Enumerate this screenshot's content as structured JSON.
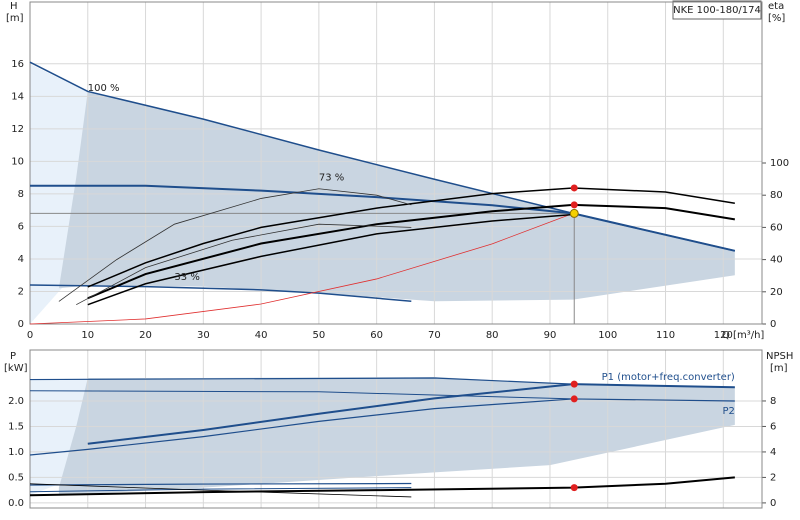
{
  "chart_data": [
    {
      "type": "line",
      "title": "NKE 100-180/174",
      "y_label": "H",
      "y_unit": "[m]",
      "y2_label": "eta",
      "y2_unit": "[%]",
      "x_label": "Q [m³/h]",
      "xlim": [
        0,
        126.7
      ],
      "xticks": [
        0,
        10,
        20,
        30,
        40,
        50,
        60,
        70,
        80,
        90,
        100,
        110,
        120
      ],
      "xtick_labels": true,
      "ylim": [
        0,
        19.8
      ],
      "yticks": [
        0,
        2,
        4,
        6,
        8,
        10,
        12,
        14,
        16
      ],
      "y2lim": [
        0,
        200
      ],
      "y2ticks": [
        0,
        20,
        40,
        60,
        80,
        100
      ],
      "grid": true,
      "envelope": {
        "color": "#c9d5e1",
        "x": [
          5,
          8,
          10,
          30,
          50,
          70,
          94,
          122
        ],
        "upper": [
          2.2,
          9,
          14.3,
          12.6,
          10.7,
          8.9,
          6.8,
          4.5
        ],
        "lower": [
          2.2,
          2.3,
          2.4,
          2.3,
          1.9,
          1.4,
          1.5,
          3.0
        ]
      },
      "series": [
        {
          "color": "#1f4e8c",
          "width": 1.5,
          "x": [
            0,
            10,
            30,
            50,
            70,
            94,
            122
          ],
          "values": [
            16.1,
            14.3,
            12.6,
            10.7,
            8.9,
            6.8,
            4.5
          ]
        },
        {
          "color": "#1f4e8c",
          "width": 2,
          "x": [
            0,
            20,
            40,
            60,
            80,
            94,
            122
          ],
          "values": [
            8.5,
            8.5,
            8.2,
            7.8,
            7.3,
            6.8,
            4.5
          ]
        },
        {
          "color": "#1f4e8c",
          "width": 1.5,
          "x": [
            0,
            20,
            40,
            50,
            66
          ],
          "values": [
            2.4,
            2.3,
            2.1,
            1.9,
            1.4
          ]
        },
        {
          "color": "#e03030",
          "width": 0.8,
          "x": [
            0,
            20,
            40,
            60,
            80,
            94
          ],
          "values": [
            0,
            0.31,
            1.23,
            2.77,
            4.93,
            6.8
          ]
        },
        {
          "color": "#000000",
          "width": 1.5,
          "axis": "y2",
          "x": [
            10,
            20,
            30,
            40,
            60,
            80,
            94,
            110,
            122
          ],
          "values": [
            23,
            38,
            50,
            60,
            72,
            81,
            84.5,
            82,
            75
          ]
        },
        {
          "color": "#000000",
          "width": 2,
          "axis": "y2",
          "x": [
            10,
            20,
            40,
            60,
            80,
            94,
            110,
            122
          ],
          "values": [
            16,
            31,
            50,
            62,
            70,
            74,
            72,
            65
          ]
        },
        {
          "color": "#000000",
          "width": 1.5,
          "axis": "y2",
          "x": [
            10,
            20,
            40,
            60,
            80,
            94
          ],
          "values": [
            12,
            25,
            42,
            56,
            64,
            68
          ]
        },
        {
          "color": "#333333",
          "width": 0.8,
          "axis": "y2",
          "x": [
            5,
            15,
            25,
            40,
            50,
            60,
            66
          ],
          "values": [
            14,
            40,
            62,
            78,
            84,
            80,
            74
          ]
        },
        {
          "color": "#333333",
          "width": 0.8,
          "axis": "y2",
          "x": [
            8,
            20,
            35,
            50,
            66
          ],
          "values": [
            12,
            35,
            52,
            62,
            60
          ]
        }
      ],
      "duty_point": {
        "x": 94.2,
        "y": 6.8,
        "color": "#f5d000"
      },
      "markers": [
        {
          "x": 94.2,
          "y": 84.5,
          "axis": "y2",
          "color": "#e02020"
        },
        {
          "x": 94.2,
          "y": 74,
          "axis": "y2",
          "color": "#e02020"
        }
      ],
      "annotations": [
        "100 %",
        "73 %",
        "33 %"
      ]
    },
    {
      "type": "line",
      "y_label": "P",
      "y_unit": "[kW]",
      "y2_label": "NPSH",
      "y2_unit": "[m]",
      "xlim": [
        0,
        126.7
      ],
      "xticks": [
        0,
        10,
        20,
        30,
        40,
        50,
        60,
        70,
        80,
        90,
        100,
        110,
        120
      ],
      "xtick_labels": false,
      "ylim": [
        -0.1,
        3.0
      ],
      "yticks": [
        {
          "value": 0,
          "label": "0.0"
        },
        0.5,
        {
          "value": 1,
          "label": "1.0"
        },
        1.5,
        {
          "value": 2,
          "label": "2.0"
        }
      ],
      "y2lim": [
        -0.4,
        12
      ],
      "y2ticks": [
        0,
        2,
        4,
        6,
        8
      ],
      "grid": true,
      "envelope": {
        "color": "#c9d5e1",
        "x": [
          5,
          8,
          10,
          30,
          50,
          70,
          90,
          122
        ],
        "upper": [
          0.3,
          1.5,
          2.45,
          2.45,
          2.46,
          2.47,
          2.35,
          2.28
        ],
        "lower": [
          0.15,
          0.16,
          0.18,
          0.3,
          0.45,
          0.6,
          0.74,
          1.53
        ]
      },
      "series": [
        {
          "name": "P1 (motor+freq.converter)",
          "color": "#1f4e8c",
          "width": 2,
          "x": [
            10,
            30,
            50,
            70,
            94,
            122
          ],
          "values": [
            1.16,
            1.43,
            1.75,
            2.05,
            2.33,
            2.27
          ]
        },
        {
          "name": "P2",
          "color": "#1f4e8c",
          "width": 1.2,
          "x": [
            0,
            10,
            30,
            50,
            70,
            94,
            122
          ],
          "values": [
            0.94,
            1.05,
            1.3,
            1.6,
            1.85,
            2.04,
            2.0
          ]
        },
        {
          "color": "#1f4e8c",
          "width": 1.2,
          "x": [
            0,
            70,
            94
          ],
          "values": [
            2.42,
            2.45,
            2.33
          ]
        },
        {
          "color": "#1f4e8c",
          "width": 1,
          "x": [
            0,
            50,
            94
          ],
          "values": [
            2.2,
            2.18,
            2.04
          ]
        },
        {
          "color": "#1f4e8c",
          "width": 1.2,
          "x": [
            0,
            30,
            66
          ],
          "values": [
            0.35,
            0.37,
            0.38
          ]
        },
        {
          "color": "#1f4e8c",
          "width": 1,
          "x": [
            0,
            30,
            66
          ],
          "values": [
            0.22,
            0.27,
            0.3
          ]
        },
        {
          "color": "#000000",
          "width": 2,
          "axis": "y2",
          "x": [
            0,
            30,
            60,
            94,
            110,
            122
          ],
          "values": [
            0.6,
            0.85,
            1.0,
            1.2,
            1.5,
            2.0
          ]
        },
        {
          "color": "#000000",
          "width": 0.8,
          "axis": "y2",
          "x": [
            0,
            30,
            66
          ],
          "values": [
            1.5,
            1.0,
            0.47
          ]
        }
      ],
      "markers": [
        {
          "x": 94.2,
          "y": 2.33,
          "color": "#e02020"
        },
        {
          "x": 94.2,
          "y": 2.04,
          "color": "#e02020"
        },
        {
          "x": 94.2,
          "y": 1.2,
          "axis": "y2",
          "color": "#e02020"
        }
      ]
    }
  ]
}
